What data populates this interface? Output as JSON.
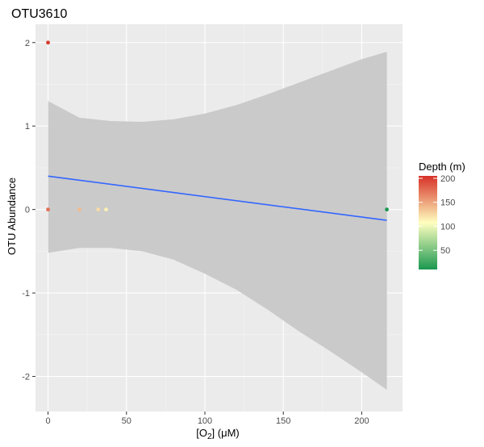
{
  "chart_data": {
    "type": "scatter",
    "title": "OTU3610",
    "xlabel": {
      "base": "[O",
      "sub": "2",
      "rest": "] (μM)"
    },
    "ylabel": "OTU Abundance",
    "xlim": [
      -8,
      226
    ],
    "ylim": [
      -2.42,
      2.22
    ],
    "xticks": [
      0,
      50,
      100,
      150,
      200
    ],
    "yticks": [
      -2,
      -1,
      0,
      1,
      2
    ],
    "grid": true,
    "legend": {
      "title": "Depth (m)",
      "placement": "right",
      "range": [
        10,
        205
      ],
      "ticks": [
        50,
        100,
        150,
        200
      ],
      "colors": [
        "#1a9850",
        "#ffffbf",
        "#d73027"
      ]
    },
    "points": [
      {
        "x": 0,
        "y": 2,
        "depth": 200
      },
      {
        "x": 0,
        "y": 0,
        "depth": 175
      },
      {
        "x": 20,
        "y": 0,
        "depth": 140
      },
      {
        "x": 32,
        "y": 0,
        "depth": 125
      },
      {
        "x": 37,
        "y": 0,
        "depth": 115
      },
      {
        "x": 216,
        "y": 0,
        "depth": 10
      }
    ],
    "fit": {
      "type": "linear",
      "color": "#3366ff",
      "line": {
        "x": [
          0,
          216
        ],
        "y": [
          0.4,
          -0.13
        ]
      },
      "band": {
        "x": [
          0,
          20,
          40,
          60,
          80,
          100,
          120,
          140,
          160,
          180,
          200,
          216
        ],
        "upper": [
          1.3,
          1.1,
          1.06,
          1.05,
          1.08,
          1.15,
          1.25,
          1.38,
          1.52,
          1.66,
          1.8,
          1.89
        ],
        "lower": [
          -0.52,
          -0.46,
          -0.46,
          -0.5,
          -0.6,
          -0.77,
          -0.96,
          -1.2,
          -1.46,
          -1.7,
          -1.95,
          -2.16
        ]
      }
    }
  }
}
